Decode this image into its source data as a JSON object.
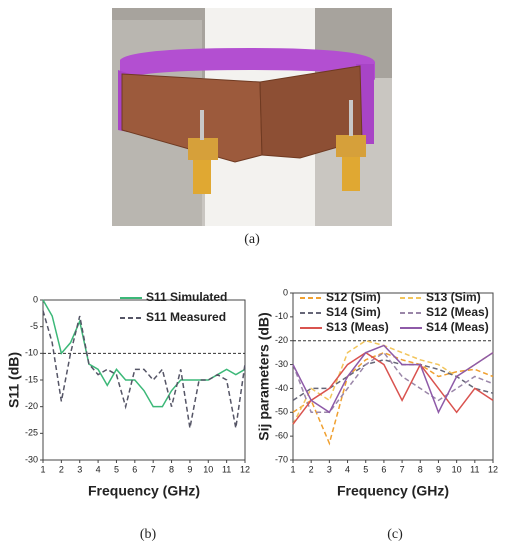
{
  "photo": {
    "caption": "(a)"
  },
  "chart_data": [
    {
      "type": "line",
      "caption": "(b)",
      "x_label": "Frequency (GHz)",
      "y_label": "S11 (dB)",
      "x": [
        1,
        1.5,
        2,
        2.5,
        3,
        3.5,
        4,
        4.5,
        5,
        5.5,
        6,
        6.5,
        7,
        7.5,
        8,
        8.5,
        9,
        9.5,
        10,
        10.5,
        11,
        11.5,
        12
      ],
      "xlim": [
        1,
        12
      ],
      "xticks": [
        1,
        2,
        3,
        4,
        5,
        6,
        7,
        8,
        9,
        10,
        11,
        12
      ],
      "ylim": [
        -30,
        0
      ],
      "yticks": [
        0,
        -5,
        -10,
        -15,
        -20,
        -25,
        -30
      ],
      "reference_line": -10,
      "series": [
        {
          "name": "S11 Simulated",
          "color": "#3cb878",
          "style": "solid",
          "values": [
            0,
            -3,
            -10,
            -8,
            -4,
            -12,
            -13,
            -16,
            -13,
            -15,
            -15,
            -17,
            -20,
            -20,
            -17,
            -15,
            -15,
            -15,
            -15,
            -14,
            -13,
            -14,
            -13
          ]
        },
        {
          "name": "S11 Measured",
          "color": "#555566",
          "style": "dashed",
          "values": [
            -2,
            -8,
            -19,
            -10,
            -3,
            -12,
            -14,
            -13,
            -14,
            -20,
            -13,
            -13,
            -15,
            -13,
            -20,
            -13,
            -24,
            -15,
            -15,
            -14,
            -15,
            -24,
            -12
          ]
        }
      ]
    },
    {
      "type": "line",
      "caption": "(c)",
      "x_label": "Frequency (GHz)",
      "y_label": "Sij parameters (dB)",
      "x": [
        1,
        2,
        3,
        4,
        5,
        6,
        7,
        8,
        9,
        10,
        11,
        12
      ],
      "xlim": [
        1,
        12
      ],
      "xticks": [
        1,
        2,
        3,
        4,
        5,
        6,
        7,
        8,
        9,
        10,
        11,
        12
      ],
      "ylim": [
        -70,
        0
      ],
      "yticks": [
        0,
        -10,
        -20,
        -30,
        -40,
        -50,
        -60,
        -70
      ],
      "reference_line": -20,
      "series": [
        {
          "name": "S12 (Sim)",
          "color": "#f0a030",
          "style": "dashed",
          "values": [
            -50,
            -45,
            -63,
            -35,
            -28,
            -25,
            -28,
            -30,
            -35,
            -33,
            -32,
            -35
          ]
        },
        {
          "name": "S13 (Sim)",
          "color": "#f2c55c",
          "style": "dashed",
          "values": [
            -55,
            -40,
            -45,
            -25,
            -20,
            -22,
            -25,
            -28,
            -30,
            -35,
            -30,
            -25
          ]
        },
        {
          "name": "S14 (Sim)",
          "color": "#666677",
          "style": "dashed",
          "values": [
            -45,
            -40,
            -40,
            -35,
            -30,
            -28,
            -30,
            -30,
            -32,
            -35,
            -40,
            -42
          ]
        },
        {
          "name": "S12 (Meas)",
          "color": "#9a86a8",
          "style": "dashed",
          "values": [
            -30,
            -50,
            -50,
            -40,
            -30,
            -25,
            -35,
            -40,
            -45,
            -40,
            -35,
            -38
          ]
        },
        {
          "name": "S13 (Meas)",
          "color": "#d9534f",
          "style": "solid",
          "values": [
            -55,
            -45,
            -40,
            -30,
            -25,
            -30,
            -45,
            -30,
            -40,
            -50,
            -40,
            -45
          ]
        },
        {
          "name": "S14 (Meas)",
          "color": "#8e5aa8",
          "style": "solid",
          "values": [
            -30,
            -45,
            -50,
            -35,
            -25,
            -22,
            -30,
            -30,
            -50,
            -35,
            -30,
            -25
          ]
        }
      ]
    }
  ]
}
